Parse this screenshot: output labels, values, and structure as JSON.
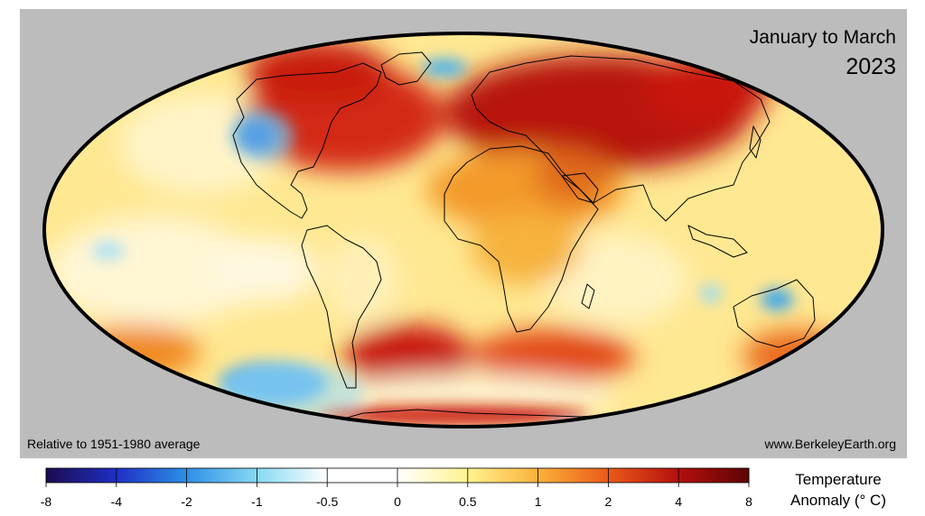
{
  "title": {
    "period": "January to March",
    "year": "2023"
  },
  "baseline_note": "Relative to 1951-1980 average",
  "source": "www.BerkeleyEarth.org",
  "legend": {
    "title_line1": "Temperature",
    "title_line2": "Anomaly (° C)",
    "ticks": [
      "-8",
      "-4",
      "-2",
      "-1",
      "-0.5",
      "0",
      "0.5",
      "1",
      "2",
      "4",
      "8"
    ],
    "colors": [
      "#1c0b4e",
      "#1f2fc4",
      "#2e8fe6",
      "#86d9f2",
      "#ffffff",
      "#ffffff",
      "#fff38f",
      "#fbb13a",
      "#ea5a18",
      "#b40f0f",
      "#5e0404"
    ]
  },
  "colors": {
    "panel_background": "#bcbcbc",
    "ocean_base": "#ffe892",
    "coastline": "#000000"
  },
  "map_features": [
    "warm-anomaly-north-atlantic",
    "cold-anomaly-western-north-america",
    "warm-anomaly-europe-russia",
    "warm-anomaly-south-atlantic",
    "cold-anomaly-southeast-pacific",
    "cold-anomaly-northern-australia",
    "warm-anomaly-antarctic-coast"
  ]
}
